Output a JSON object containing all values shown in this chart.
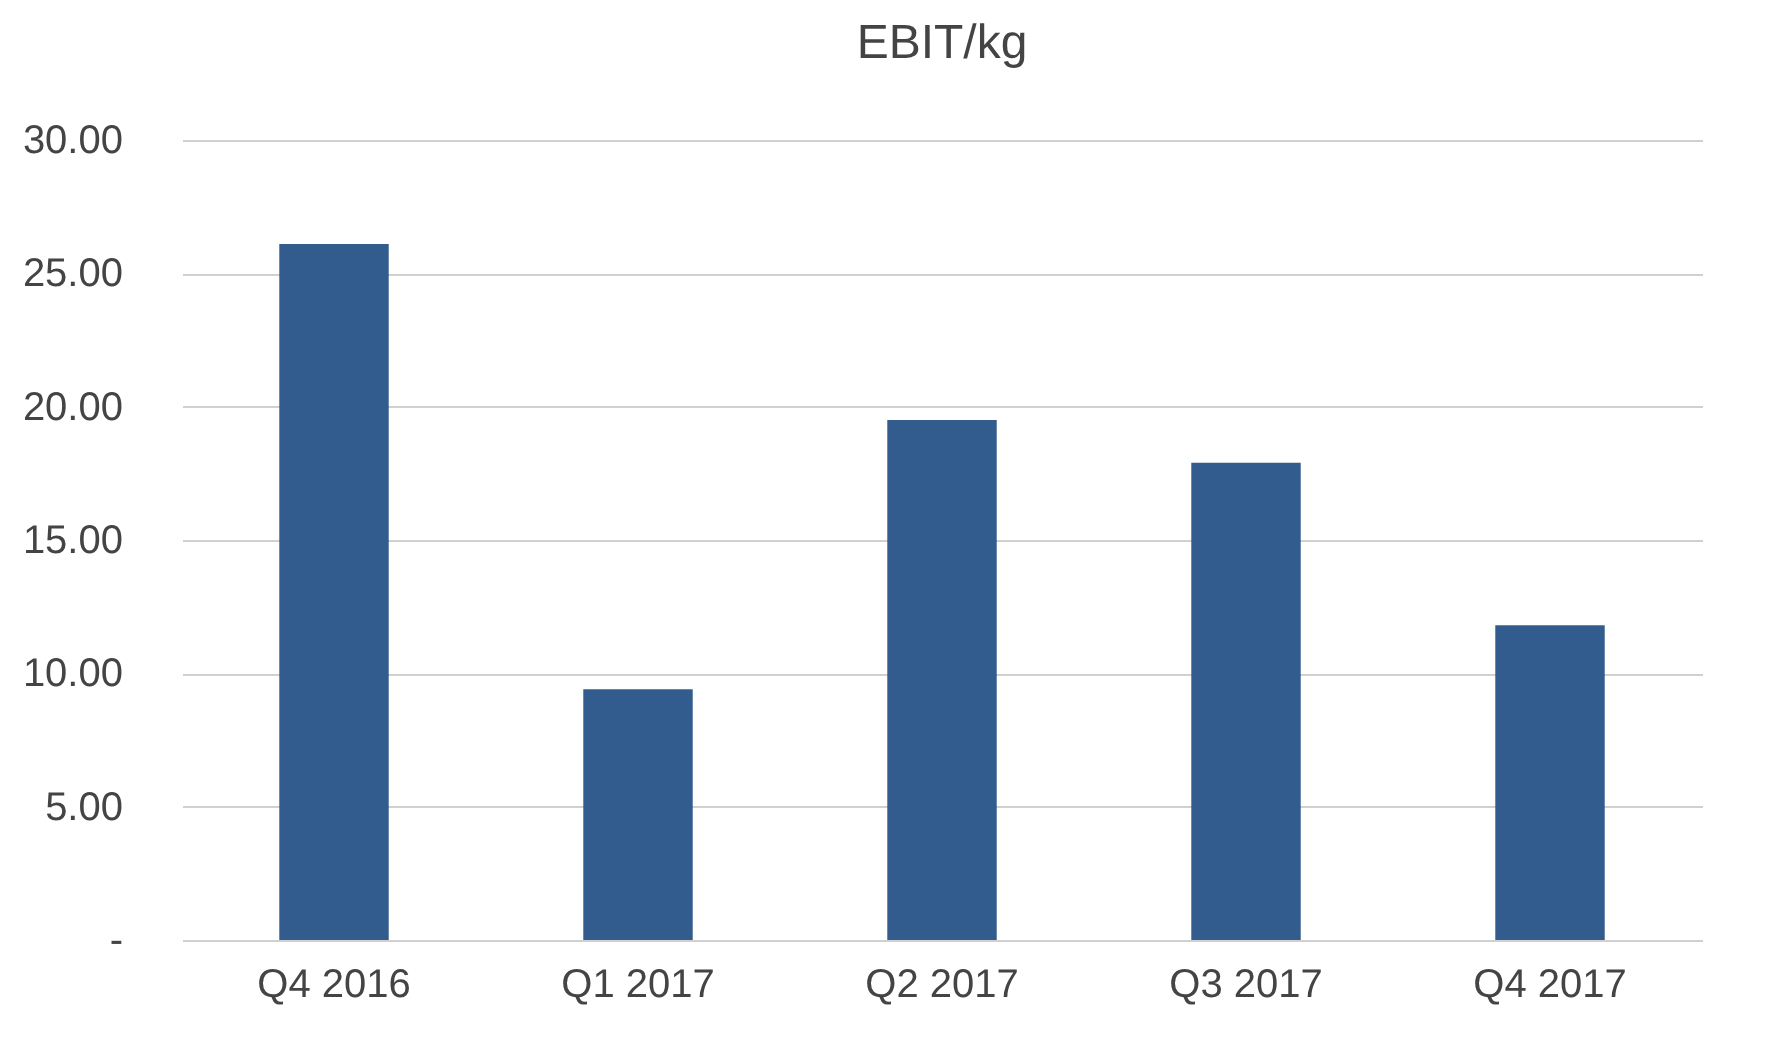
{
  "chart_data": {
    "type": "bar",
    "title": "EBIT/kg",
    "categories": [
      "Q4 2016",
      "Q1 2017",
      "Q2 2017",
      "Q3 2017",
      "Q4 2017"
    ],
    "values": [
      26.1,
      9.4,
      19.5,
      17.9,
      11.8
    ],
    "color": "#335c8e",
    "ylim": [
      0,
      30
    ],
    "yticks": [
      {
        "value": 0,
        "label": "-"
      },
      {
        "value": 5,
        "label": "5.00"
      },
      {
        "value": 10,
        "label": "10.00"
      },
      {
        "value": 15,
        "label": "15.00"
      },
      {
        "value": 20,
        "label": "20.00"
      },
      {
        "value": 25,
        "label": "25.00"
      },
      {
        "value": 30,
        "label": "30.00"
      }
    ],
    "grid": "y"
  }
}
